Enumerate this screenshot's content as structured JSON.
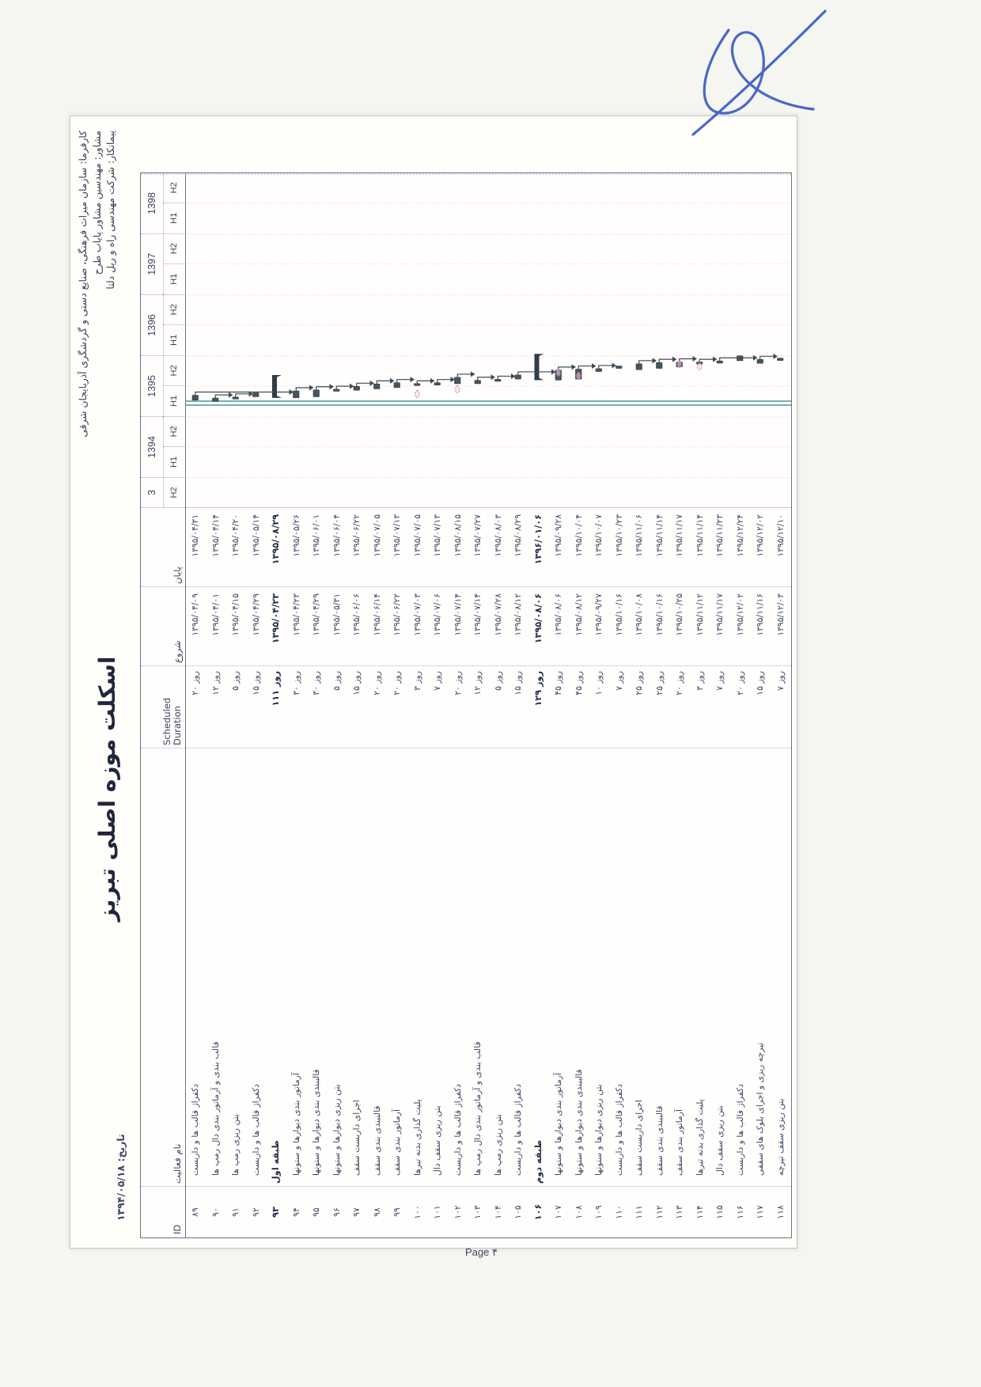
{
  "header": {
    "date": "تاریخ: ۱۳۹۴/۰۵/۱۸",
    "title": "اسکلت موزه اصلی تبریز",
    "client": "كارفرما: سازمان میراث فرهنگی، صنایع دستی و گردشگری آذربایجان شرقی",
    "consultant": "مشاور: مهندسین مشاور پایاب طرح",
    "contractor": "پیمانکار: شرکت مهندسی راه و ریل دلتا"
  },
  "footer": {
    "page": "Page ۴"
  },
  "table": {
    "columns": {
      "id": "ID",
      "name": "نام فعالیت",
      "duration": "Scheduled Duration",
      "start": "شروع",
      "finish": "پایان"
    }
  },
  "timescale": {
    "first_year_clipped": "3",
    "years": [
      "1394",
      "1395",
      "1396",
      "1397",
      "1398"
    ],
    "half_labels": [
      "H1",
      "H2"
    ],
    "start": "1393/07/01",
    "end": "1399/01/01"
  },
  "chart_data": {
    "type": "gantt",
    "tasks": [
      {
        "id": "۸۹",
        "name": "دکفراژ قالب ها و داربست",
        "duration": "۲۰ روز",
        "start": "۱۳۹۵/۰۴/۰۹",
        "finish": "۱۳۹۵/۰۴/۳۱",
        "summary": false
      },
      {
        "id": "۹۰",
        "name": "قالب بندی و آرماتور بندی دال رمپ ها",
        "duration": "۱۲ روز",
        "start": "۱۳۹۵/۰۴/۰۱",
        "finish": "۱۳۹۵/۰۴/۱۴",
        "summary": false
      },
      {
        "id": "۹۱",
        "name": "بتن ریزی رمپ ها",
        "duration": "۵ روز",
        "start": "۱۳۹۵/۰۴/۱۵",
        "finish": "۱۳۹۵/۰۴/۲۰",
        "summary": false
      },
      {
        "id": "۹۲",
        "name": "دکفراژ قالب ها و داربست",
        "duration": "۱۵ روز",
        "start": "۱۳۹۵/۰۴/۲۹",
        "finish": "۱۳۹۵/۰۵/۱۴",
        "summary": false
      },
      {
        "id": "۹۳",
        "name": "طبقه اول",
        "duration": "۱۱۱ روز",
        "start": "۱۳۹۵/۰۴/۲۳",
        "finish": "۱۳۹۵/۰۸/۲۹",
        "summary": true
      },
      {
        "id": "۹۴",
        "name": "آرماتور بندی دیوارها و ستونها",
        "duration": "۳۰ روز",
        "start": "۱۳۹۵/۰۴/۲۳",
        "finish": "۱۳۹۵/۰۵/۲۶",
        "summary": false
      },
      {
        "id": "۹۵",
        "name": "قالببندی بندی دیوارها و ستونها",
        "duration": "۳۰ روز",
        "start": "۱۳۹۵/۰۴/۲۹",
        "finish": "۱۳۹۵/۰۶/۰۱",
        "summary": false
      },
      {
        "id": "۹۶",
        "name": "بتن ریزی دیوارها و ستونها",
        "duration": "۵ روز",
        "start": "۱۳۹۵/۰۵/۳۱",
        "finish": "۱۳۹۵/۰۶/۰۴",
        "summary": false
      },
      {
        "id": "۹۷",
        "name": "اجرای داربست سقف",
        "duration": "۱۵ روز",
        "start": "۱۳۹۵/۰۶/۰۶",
        "finish": "۱۳۹۵/۰۶/۲۲",
        "summary": false
      },
      {
        "id": "۹۸",
        "name": "قالببندی بندی سقف",
        "duration": "۲۰ روز",
        "start": "۱۳۹۵/۰۶/۱۴",
        "finish": "۱۳۹۵/۰۷/۰۵",
        "summary": false
      },
      {
        "id": "۹۹",
        "name": "آرماتور بندی سقف",
        "duration": "۲۰ روز",
        "start": "۱۳۹۵/۰۶/۲۲",
        "finish": "۱۳۹۵/۰۷/۱۳",
        "summary": false
      },
      {
        "id": "۱۰۰",
        "name": "پلیت گذاری بدنه تیرها",
        "duration": "۳ روز",
        "start": "۱۳۹۵/۰۷/۰۳",
        "finish": "۱۳۹۵/۰۷/۰۵",
        "summary": false
      },
      {
        "id": "۱۰۱",
        "name": "بتن ریزی سقف دال",
        "duration": "۷ روز",
        "start": "۱۳۹۵/۰۷/۰۶",
        "finish": "۱۳۹۵/۰۷/۱۳",
        "summary": false
      },
      {
        "id": "۱۰۲",
        "name": "دکفراژ قالب ها و داربست",
        "duration": "۲۰ روز",
        "start": "۱۳۹۵/۰۷/۱۴",
        "finish": "۱۳۹۵/۰۸/۱۵",
        "summary": false
      },
      {
        "id": "۱۰۳",
        "name": "قالب بندی و آرماتور بندی دال رمپ ها",
        "duration": "۱۲ روز",
        "start": "۱۳۹۵/۰۷/۱۴",
        "finish": "۱۳۹۵/۰۷/۲۷",
        "summary": false
      },
      {
        "id": "۱۰۴",
        "name": "بتن ریزی رمپ ها",
        "duration": "۵ روز",
        "start": "۱۳۹۵/۰۷/۲۸",
        "finish": "۱۳۹۵/۰۸/۰۳",
        "summary": false
      },
      {
        "id": "۱۰۵",
        "name": "دکفراژ قالب ها و داربست",
        "duration": "۱۵ روز",
        "start": "۱۳۹۵/۰۸/۱۲",
        "finish": "۱۳۹۵/۰۸/۲۹",
        "summary": false
      },
      {
        "id": "۱۰۶",
        "name": "طبقه دوم",
        "duration": "۱۲۹ روز",
        "start": "۱۳۹۵/۰۸/۰۶",
        "finish": "۱۳۹۶/۰۱/۰۶",
        "summary": true
      },
      {
        "id": "۱۰۷",
        "name": "آرماتور بندی دیوارها و ستونها",
        "duration": "۴۵ روز",
        "start": "۱۳۹۵/۰۸/۰۶",
        "finish": "۱۳۹۵/۰۹/۲۸",
        "summary": false
      },
      {
        "id": "۱۰۸",
        "name": "قالببندی بندی دیوارها و ستونها",
        "duration": "۴۵ روز",
        "start": "۱۳۹۵/۰۸/۱۲",
        "finish": "۱۳۹۵/۱۰/۰۴",
        "summary": false
      },
      {
        "id": "۱۰۹",
        "name": "بتن ریزی دیوارها و ستونها",
        "duration": "۱۰ روز",
        "start": "۱۳۹۵/۰۹/۲۷",
        "finish": "۱۳۹۵/۱۰/۰۷",
        "summary": false
      },
      {
        "id": "۱۱۰",
        "name": "دکفراژ قالب ها و داربست",
        "duration": "۷ روز",
        "start": "۱۳۹۵/۱۰/۱۶",
        "finish": "۱۳۹۵/۱۰/۲۳",
        "summary": false
      },
      {
        "id": "۱۱۱",
        "name": "اجرای داربست سقف",
        "duration": "۲۵ روز",
        "start": "۱۳۹۵/۱۰/۰۸",
        "finish": "۱۳۹۵/۱۱/۰۶",
        "summary": false
      },
      {
        "id": "۱۱۲",
        "name": "قالببندی بندی سقف",
        "duration": "۲۵ روز",
        "start": "۱۳۹۵/۱۰/۱۶",
        "finish": "۱۳۹۵/۱۱/۱۴",
        "summary": false
      },
      {
        "id": "۱۱۳",
        "name": "آرماتور بندی سقف",
        "duration": "۲۰ روز",
        "start": "۱۳۹۵/۱۰/۲۵",
        "finish": "۱۳۹۵/۱۱/۱۷",
        "summary": false
      },
      {
        "id": "۱۱۴",
        "name": "پلیت گذاری بدنه تیرها",
        "duration": "۳ روز",
        "start": "۱۳۹۵/۱۱/۱۲",
        "finish": "۱۳۹۵/۱۱/۱۴",
        "summary": false
      },
      {
        "id": "۱۱۵",
        "name": "بتن ریزی سقف دال",
        "duration": "۷ روز",
        "start": "۱۳۹۵/۱۱/۱۷",
        "finish": "۱۳۹۵/۱۱/۲۳",
        "summary": false
      },
      {
        "id": "۱۱۶",
        "name": "دکفراژ قالب ها و داربست",
        "duration": "۲۰ روز",
        "start": "۱۳۹۵/۱۲/۰۲",
        "finish": "۱۳۹۵/۱۲/۲۴",
        "summary": false
      },
      {
        "id": "۱۱۷",
        "name": "تیرچه ریزی و اجرای بلوک های سقفی",
        "duration": "۱۵ روز",
        "start": "۱۳۹۵/۱۱/۱۶",
        "finish": "۱۳۹۵/۱۲/۰۲",
        "summary": false
      },
      {
        "id": "۱۱۸",
        "name": "بتن ریزی سقف تیرچه",
        "duration": "۷ روز",
        "start": "۱۳۹۵/۱۲/۰۳",
        "finish": "۱۳۹۵/۱۲/۱۰",
        "summary": false
      }
    ]
  },
  "colors": {
    "paper": "#fffefb",
    "ink": "#3d4766",
    "ink_bold": "#252e4a",
    "bar": "#46555e",
    "bar_summary": "#313c45",
    "link": "#3f4b55",
    "status_line": "#2f8f8d",
    "grid_magenta": "#c77ab0",
    "pen_blue": "#2e4fbe"
  }
}
